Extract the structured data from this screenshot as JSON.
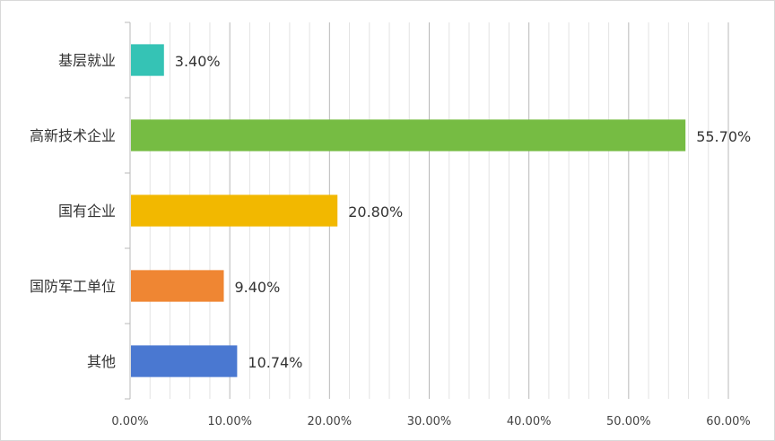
{
  "chart_data": {
    "type": "bar",
    "orientation": "horizontal",
    "categories": [
      "基层就业",
      "高新技术企业",
      "国有企业",
      "国防军工单位",
      "其他"
    ],
    "values": [
      3.4,
      55.7,
      20.8,
      9.4,
      10.74
    ],
    "value_labels": [
      "3.40%",
      "55.70%",
      "20.80%",
      "9.40%",
      "10.74%"
    ],
    "colors": [
      "#35c3b5",
      "#76bc43",
      "#f2b800",
      "#ef8633",
      "#4a78d1"
    ],
    "xlim": [
      0,
      60
    ],
    "xticks": [
      0,
      10,
      20,
      30,
      40,
      50,
      60
    ],
    "xtick_labels": [
      "0.00%",
      "10.00%",
      "20.00%",
      "30.00%",
      "40.00%",
      "50.00%",
      "60.00%"
    ],
    "minor_step": 2,
    "grid": true,
    "legend": "none",
    "title": "",
    "xlabel": "",
    "ylabel": ""
  }
}
